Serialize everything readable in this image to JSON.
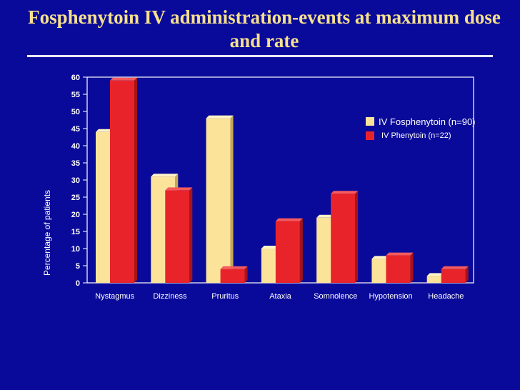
{
  "title": "Fosphenytoin IV administration-events at maximum dose and rate",
  "colors": {
    "background": "#0a0a9a",
    "title": "#f6e08c",
    "fosphenytoin": "#fbe49a",
    "phenytoin": "#e8242a"
  },
  "chart_data": {
    "type": "bar",
    "ylabel": "Percentage of patients",
    "ylim": [
      0,
      60
    ],
    "yticks": [
      0,
      5,
      10,
      15,
      20,
      25,
      30,
      35,
      40,
      45,
      50,
      55,
      60
    ],
    "categories": [
      "Nystagmus",
      "Dizziness",
      "Pruritus",
      "Ataxia",
      "Somnolence",
      "Hypotension",
      "Headache"
    ],
    "series": [
      {
        "name": "IV Fosphenytoin (n=90)",
        "values": [
          44,
          31,
          48,
          10,
          19,
          7,
          2
        ]
      },
      {
        "name": "IV Phenytoin (n=22)",
        "values": [
          59,
          27,
          4,
          18,
          26,
          8,
          4
        ]
      }
    ],
    "legend": "top-right",
    "grid": false
  }
}
